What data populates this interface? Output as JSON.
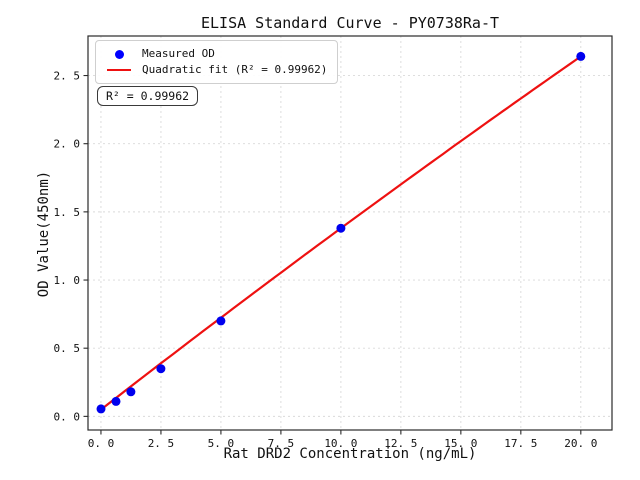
{
  "figure": {
    "title": "ELISA Standard Curve - PY0738Ra-T",
    "xlabel": "Rat DRD2 Concentration (ng/mL)",
    "ylabel": "OD Value(450nm)",
    "annotation": "R² = 0.99962",
    "legend": {
      "measured_label": "Measured OD",
      "fit_label": "Quadratic fit (R² = 0.99962)"
    }
  },
  "chart_data": {
    "type": "scatter",
    "title": "ELISA Standard Curve - PY0738Ra-T",
    "xlabel": "Rat DRD2 Concentration (ng/mL)",
    "ylabel": "OD Value(450nm)",
    "series": [
      {
        "name": "Measured OD",
        "type": "scatter",
        "color": "#0000ee",
        "x": [
          0,
          0.625,
          1.25,
          2.5,
          5,
          10,
          20
        ],
        "y": [
          0.055,
          0.11,
          0.18,
          0.35,
          0.7,
          1.38,
          2.64
        ]
      },
      {
        "name": "Quadratic fit (R² = 0.99962)",
        "type": "line",
        "color": "#ee1111",
        "fit": {
          "form": "quadratic",
          "a": -0.00035,
          "b": 0.1365,
          "c": 0.05,
          "x_range": [
            0,
            20
          ],
          "r_squared": 0.99962
        }
      }
    ],
    "xlim": [
      -0.54,
      21.3
    ],
    "ylim": [
      -0.1,
      2.79
    ],
    "xticks": [
      0,
      2.5,
      5,
      7.5,
      10,
      12.5,
      15,
      17.5,
      20
    ],
    "xtick_labels": [
      "0. 0",
      "2. 5",
      "5. 0",
      "7. 5",
      "10. 0",
      "12. 5",
      "15. 0",
      "17. 5",
      "20. 0"
    ],
    "yticks": [
      0,
      0.5,
      1,
      1.5,
      2,
      2.5
    ],
    "ytick_labels": [
      "0. 0",
      "0. 5",
      "1. 0",
      "1. 5",
      "2. 0",
      "2. 5"
    ],
    "grid": true,
    "legend_position": "upper left",
    "annotation": "R² = 0.99962",
    "colors": {
      "grid": "#d9d9d9",
      "spine": "#2a2a2a",
      "text": "#111111",
      "background": "#ffffff"
    }
  }
}
